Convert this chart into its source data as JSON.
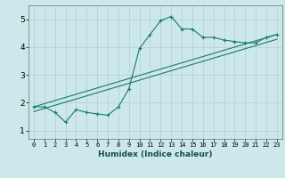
{
  "xlabel": "Humidex (Indice chaleur)",
  "bg_color": "#cce8ea",
  "grid_color": "#b0d0d2",
  "line_color": "#1a7a6e",
  "xlim": [
    -0.5,
    23.5
  ],
  "ylim": [
    0.7,
    5.5
  ],
  "xticks": [
    0,
    1,
    2,
    3,
    4,
    5,
    6,
    7,
    8,
    9,
    10,
    11,
    12,
    13,
    14,
    15,
    16,
    17,
    18,
    19,
    20,
    21,
    22,
    23
  ],
  "yticks": [
    1,
    2,
    3,
    4,
    5
  ],
  "line1_x": [
    0,
    1,
    2,
    3,
    4,
    5,
    6,
    7,
    8,
    9,
    10,
    11,
    12,
    13,
    14,
    15,
    16,
    17,
    18,
    19,
    20,
    21,
    22,
    23
  ],
  "line1_y": [
    1.85,
    1.85,
    1.65,
    1.3,
    1.75,
    1.65,
    1.6,
    1.55,
    1.85,
    2.5,
    3.95,
    4.45,
    4.95,
    5.1,
    4.65,
    4.65,
    4.35,
    4.35,
    4.25,
    4.2,
    4.15,
    4.15,
    4.35,
    4.45
  ],
  "line2_x": [
    0,
    23
  ],
  "line2_y": [
    1.85,
    4.45
  ],
  "line3_x": [
    0,
    23
  ],
  "line3_y": [
    1.68,
    4.28
  ]
}
